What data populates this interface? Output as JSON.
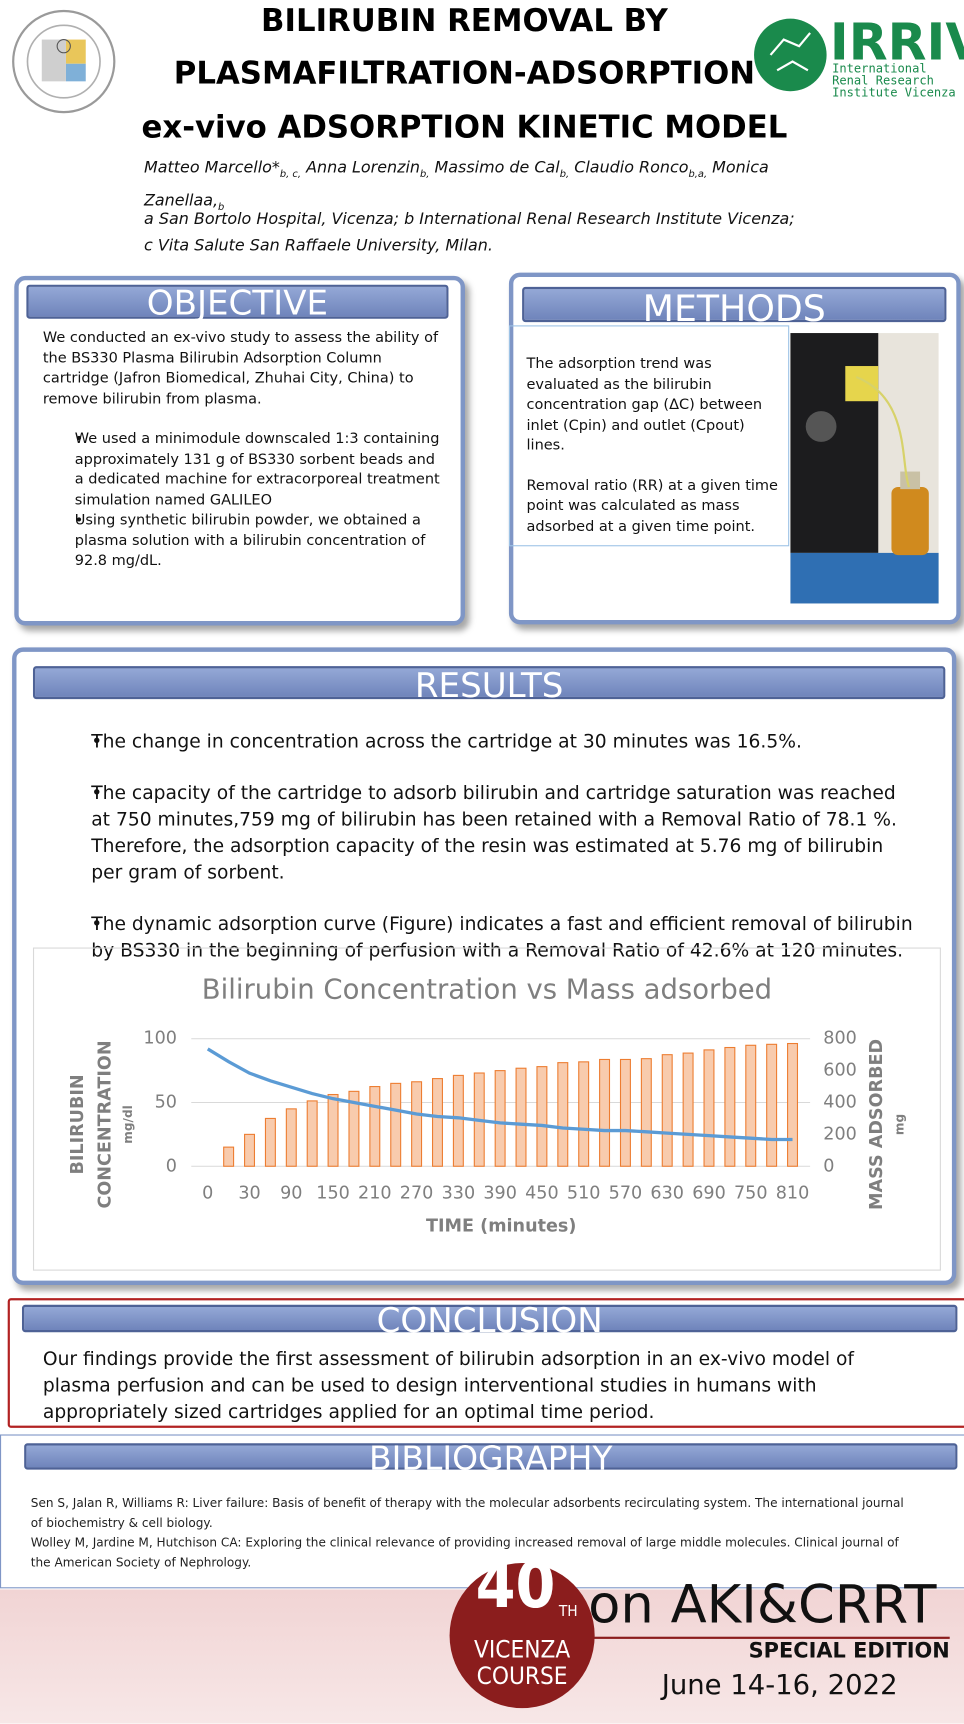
{
  "header": {
    "title_lines": [
      "BILIRUBIN REMOVAL BY",
      "PLASMAFILTRATION-ADSORPTION",
      "ex-vivo ADSORPTION KINETIC MODEL"
    ],
    "authors": [
      {
        "name": "Matteo Marcello*",
        "affil": "b, c,"
      },
      {
        "name": "Anna Lorenzin",
        "affil": "b,"
      },
      {
        "name": "Massimo de Cal",
        "affil": "b,"
      },
      {
        "name": "Claudio Ronco",
        "affil": "b,a,"
      },
      {
        "name": "Monica Zanellaa,",
        "affil": "b"
      }
    ],
    "affiliations": [
      "a  San Bortolo Hospital, Vicenza; b International Renal Research Institute Vicenza;",
      "c Vita Salute San Raffaele University, Milan."
    ],
    "logo_right": {
      "name": "IRRIV",
      "lines": [
        "International",
        "Renal Research",
        "Institute Vicenza"
      ]
    }
  },
  "objective": {
    "heading": "OBJECTIVE",
    "paragraph": "We conducted an ex-vivo study to assess the ability of the BS330 Plasma Bilirubin Adsorption Column cartridge (Jafron Biomedical, Zhuhai City, China) to remove bilirubin from plasma.",
    "bullets": [
      "We used a minimodule downscaled 1:3 containing approximately 131 g of BS330 sorbent beads and a dedicated machine for extracorporeal treatment simulation named GALILEO",
      "Using synthetic bilirubin powder, we obtained a plasma solution with a bilirubin concentration of 92.8 mg/dL."
    ]
  },
  "methods": {
    "heading": "METHODS",
    "paragraphs": [
      "The adsorption trend was evaluated as the bilirubin concentration gap (ΔC) between inlet (Cpin) and outlet (Cpout) lines.",
      "Removal ratio (RR) at a given time point was calculated as mass adsorbed at a given time point."
    ]
  },
  "results": {
    "heading": "RESULTS",
    "bullets": [
      "The change in concentration across the cartridge at 30 minutes was 16.5%.",
      "The capacity of the cartridge to adsorb bilirubin and cartridge saturation was reached at 750 minutes,759 mg of bilirubin has been retained with a Removal Ratio of 78.1 %. Therefore, the adsorption capacity of the resin was estimated at 5.76 mg of bilirubin per gram of sorbent.",
      "The dynamic adsorption curve (Figure) indicates a fast and efficient removal of bilirubin by BS330 in the beginning of perfusion with a Removal Ratio of 42.6% at 120 minutes."
    ]
  },
  "chart_data": {
    "type": "bar",
    "title": "Bilirubin Concentration vs Mass adsorbed",
    "x_label": "TIME (minutes)",
    "y_label": [
      "BILIRUBIN",
      "CONCENTRATION"
    ],
    "y_unit": "mg/dl",
    "y2_label": "MASS ADSORBED",
    "y2_unit": "mg",
    "categories": [
      "0",
      null,
      "30",
      null,
      "90",
      null,
      "150",
      null,
      "210",
      null,
      "270",
      null,
      "330",
      null,
      "390",
      null,
      "450",
      null,
      "510",
      null,
      "570",
      null,
      "630",
      null,
      "690",
      null,
      "750",
      null,
      "810"
    ],
    "series": [
      {
        "type": "bar",
        "axis": "y2",
        "color": "#f8cbad",
        "edge": "#ed7d31",
        "values": [
          0,
          120,
          200,
          300,
          360,
          410,
          450,
          470,
          500,
          520,
          530,
          550,
          570,
          585,
          600,
          615,
          625,
          650,
          655,
          670,
          670,
          675,
          700,
          710,
          730,
          745,
          759,
          765,
          770
        ]
      },
      {
        "type": "line",
        "axis": "y",
        "color": "#5b9bd5",
        "values": [
          92,
          82,
          73,
          67,
          62,
          57,
          53,
          50,
          47,
          44,
          41,
          39,
          38,
          36,
          34,
          33,
          32,
          30,
          29,
          28,
          28,
          27,
          26,
          25,
          24,
          23,
          22,
          21,
          21
        ]
      }
    ],
    "ylim": [
      0,
      100
    ],
    "yticks": [
      0,
      50,
      100
    ],
    "y2lim": [
      0,
      800
    ],
    "y2ticks": [
      0,
      200,
      400,
      600,
      800
    ],
    "grid": true
  },
  "conclusion": {
    "heading": "CONCLUSION",
    "text": "Our findings provide the first assessment of bilirubin adsorption in an ex-vivo model of plasma perfusion and can be used to design interventional studies in humans with appropriately sized cartridges applied for an optimal time period."
  },
  "bibliography": {
    "heading": "BIBLIOGRAPHY",
    "references": [
      "Sen S, Jalan R, Williams R: Liver failure: Basis of benefit of therapy with the molecular adsorbents recirculating system. The international journal of biochemistry & cell biology.",
      "Wolley M, Jardine M, Hutchison CA: Exploring the clinical relevance of providing increased removal of large middle molecules. Clinical journal of the American Society of Nephrology."
    ]
  },
  "footer": {
    "number": "40",
    "suffix": "TH",
    "city": "VICENZA",
    "course": "COURSE",
    "event": "on AKI&CRRT",
    "edition": "SPECIAL EDITION",
    "dates": "June 14-16, 2022"
  }
}
